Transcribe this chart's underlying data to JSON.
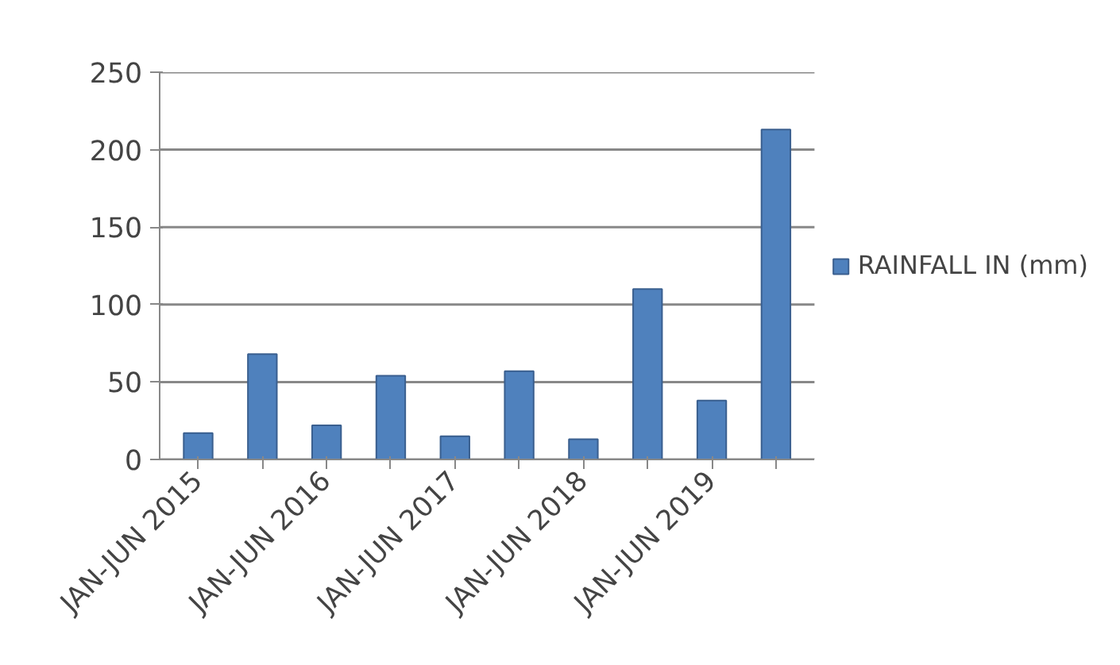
{
  "chart_data": {
    "type": "bar",
    "categories": [
      "JAN-JUN 2015",
      null,
      "JAN-JUN 2016",
      null,
      "JAN-JUN 2017",
      null,
      "JAN-JUN 2018",
      null,
      "JAN-JUN 2019",
      null
    ],
    "series": [
      {
        "name": "RAINFALL IN (mm)",
        "color": "#4f81bd",
        "values": [
          17,
          68,
          22,
          54,
          15,
          57,
          13,
          110,
          38,
          213
        ]
      }
    ],
    "ylim": [
      0,
      250
    ],
    "yticks": [
      0,
      50,
      100,
      150,
      200,
      250
    ],
    "grid": "y",
    "legend": "right"
  }
}
